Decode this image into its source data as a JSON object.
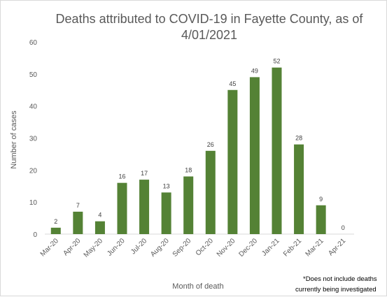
{
  "chart_data": {
    "type": "bar",
    "title_lines": [
      "Deaths attributed to COVID-19 in Fayette County, as of",
      "4/01/2021"
    ],
    "categories": [
      "Mar-20",
      "Apr-20",
      "May-20",
      "Jun-20",
      "Jul-20",
      "Aug-20",
      "Sep-20",
      "Oct-20",
      "Nov-20",
      "Dec-20",
      "Jan-21",
      "Feb-21",
      "Mar-21",
      "Apr-21"
    ],
    "values": [
      2,
      7,
      4,
      16,
      17,
      13,
      18,
      26,
      45,
      49,
      52,
      28,
      9,
      0
    ],
    "xlabel": "Month of death",
    "ylabel": "Number of cases",
    "ylim": [
      0,
      60
    ],
    "yticks": [
      0,
      10,
      20,
      30,
      40,
      50,
      60
    ],
    "grid": false,
    "bar_color": "#548235",
    "footnote_lines": [
      "*Does not include deaths",
      "currently being investigated"
    ]
  }
}
